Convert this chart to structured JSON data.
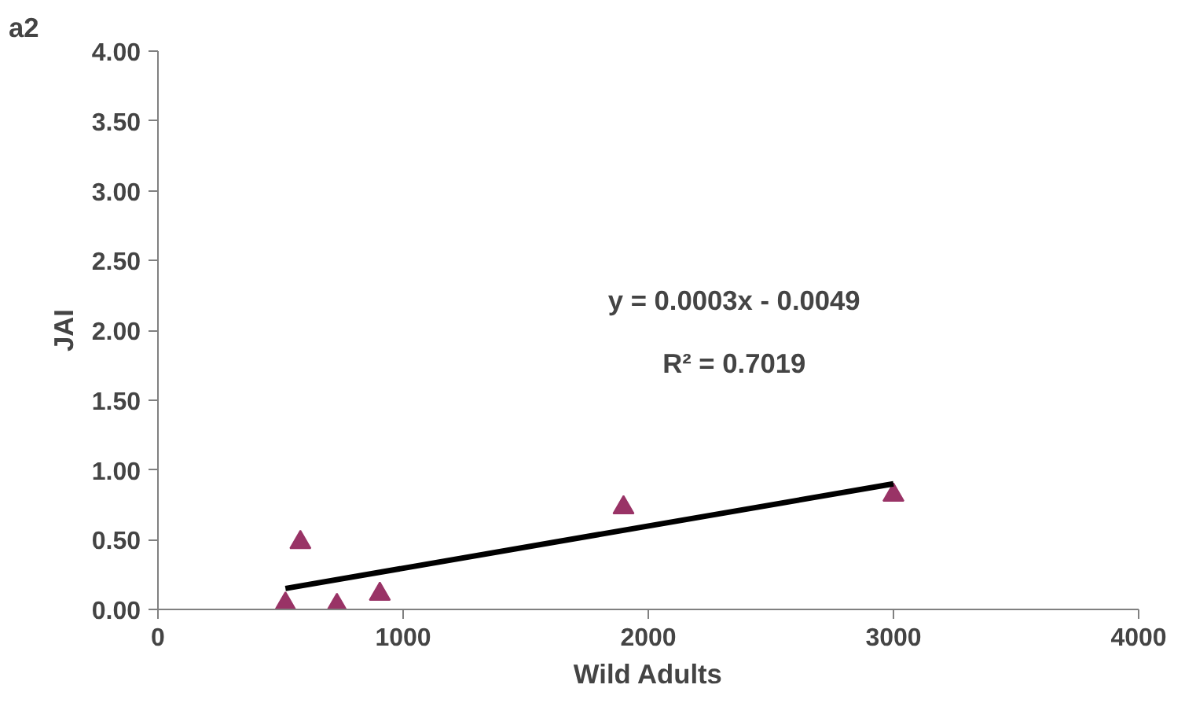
{
  "chart_data": {
    "type": "scatter",
    "xlabel": "Wild Adults",
    "ylabel": "JAI",
    "annotations": [
      "a2",
      "y = 0.0003x - 0.0049",
      "R² = 0.7019"
    ],
    "series": [
      {
        "color": "#993366",
        "marker": "triangle",
        "x": [
          520,
          581,
          730,
          905,
          1899,
          3000
        ],
        "values": [
          0.04,
          0.48,
          0.03,
          0.11,
          0.73,
          0.82
        ]
      },
      {
        "type": "line",
        "color": "#000000",
        "x": [
          520,
          3000
        ],
        "values": [
          0.15,
          0.9
        ]
      }
    ],
    "xlim": [
      0,
      4000
    ],
    "ylim": [
      0,
      4
    ],
    "xticks": [
      0,
      1000,
      2000,
      3000,
      4000
    ],
    "yticks": [
      {
        "value": 0,
        "label": "0.00"
      },
      {
        "value": 0.5,
        "label": "0.50"
      },
      {
        "value": 1,
        "label": "1.00"
      },
      {
        "value": 1.5,
        "label": "1.50"
      },
      {
        "value": 2,
        "label": "2.00"
      },
      {
        "value": 2.5,
        "label": "2.50"
      },
      {
        "value": 3,
        "label": "3.00"
      },
      {
        "value": 3.5,
        "label": "3.50"
      },
      {
        "value": 4,
        "label": "4.00"
      }
    ],
    "grid": false
  }
}
